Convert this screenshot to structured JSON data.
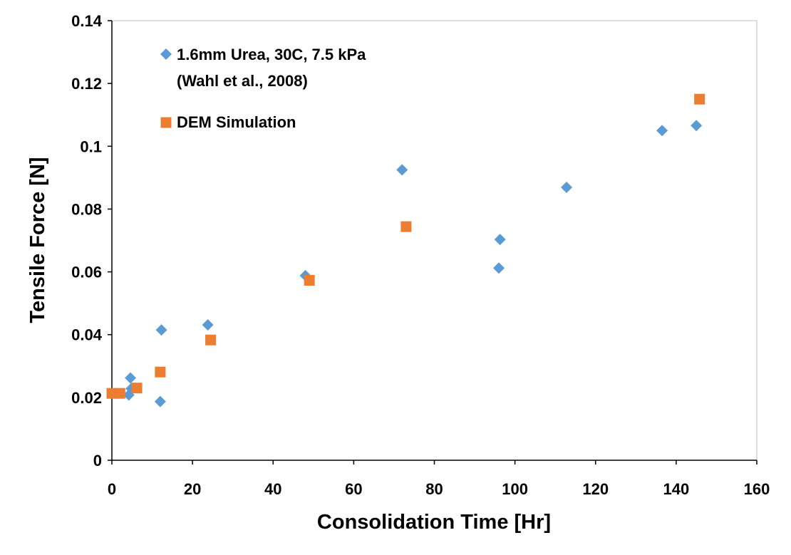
{
  "chart_data": {
    "type": "scatter",
    "title": "",
    "xlabel": "Consolidation Time [Hr]",
    "ylabel": "Tensile Force [N]",
    "xlim": [
      0,
      160
    ],
    "ylim": [
      0,
      0.14
    ],
    "x_ticks": [
      "0",
      "20",
      "40",
      "60",
      "80",
      "100",
      "120",
      "140",
      "160"
    ],
    "y_ticks": [
      "0",
      "0.02",
      "0.04",
      "0.06",
      "0.08",
      "0.1",
      "0.12",
      "0.14"
    ],
    "grid": false,
    "legend_position": "top-left",
    "series": [
      {
        "name": "1.6mm Urea, 30C, 7.5 kPa",
        "name_line2": "(Wahl et al., 2008)",
        "marker": "diamond",
        "color": "#5B9BD5",
        "points": [
          [
            4.2,
            0.0208
          ],
          [
            4.6,
            0.0262
          ],
          [
            4.8,
            0.0228
          ],
          [
            12.0,
            0.0187
          ],
          [
            12.3,
            0.0415
          ],
          [
            23.8,
            0.0431
          ],
          [
            48.0,
            0.0588
          ],
          [
            72.0,
            0.0925
          ],
          [
            96.0,
            0.0612
          ],
          [
            96.3,
            0.0703
          ],
          [
            112.8,
            0.0869
          ],
          [
            136.5,
            0.105
          ],
          [
            145.0,
            0.1066
          ]
        ]
      },
      {
        "name": "DEM Simulation",
        "marker": "square",
        "color": "#ED7D31",
        "points": [
          [
            0.0,
            0.0213
          ],
          [
            2.0,
            0.0213
          ],
          [
            6.2,
            0.023
          ],
          [
            12.0,
            0.0281
          ],
          [
            24.5,
            0.0383
          ],
          [
            49.0,
            0.0573
          ],
          [
            73.0,
            0.0744
          ],
          [
            145.8,
            0.115
          ]
        ]
      }
    ]
  }
}
